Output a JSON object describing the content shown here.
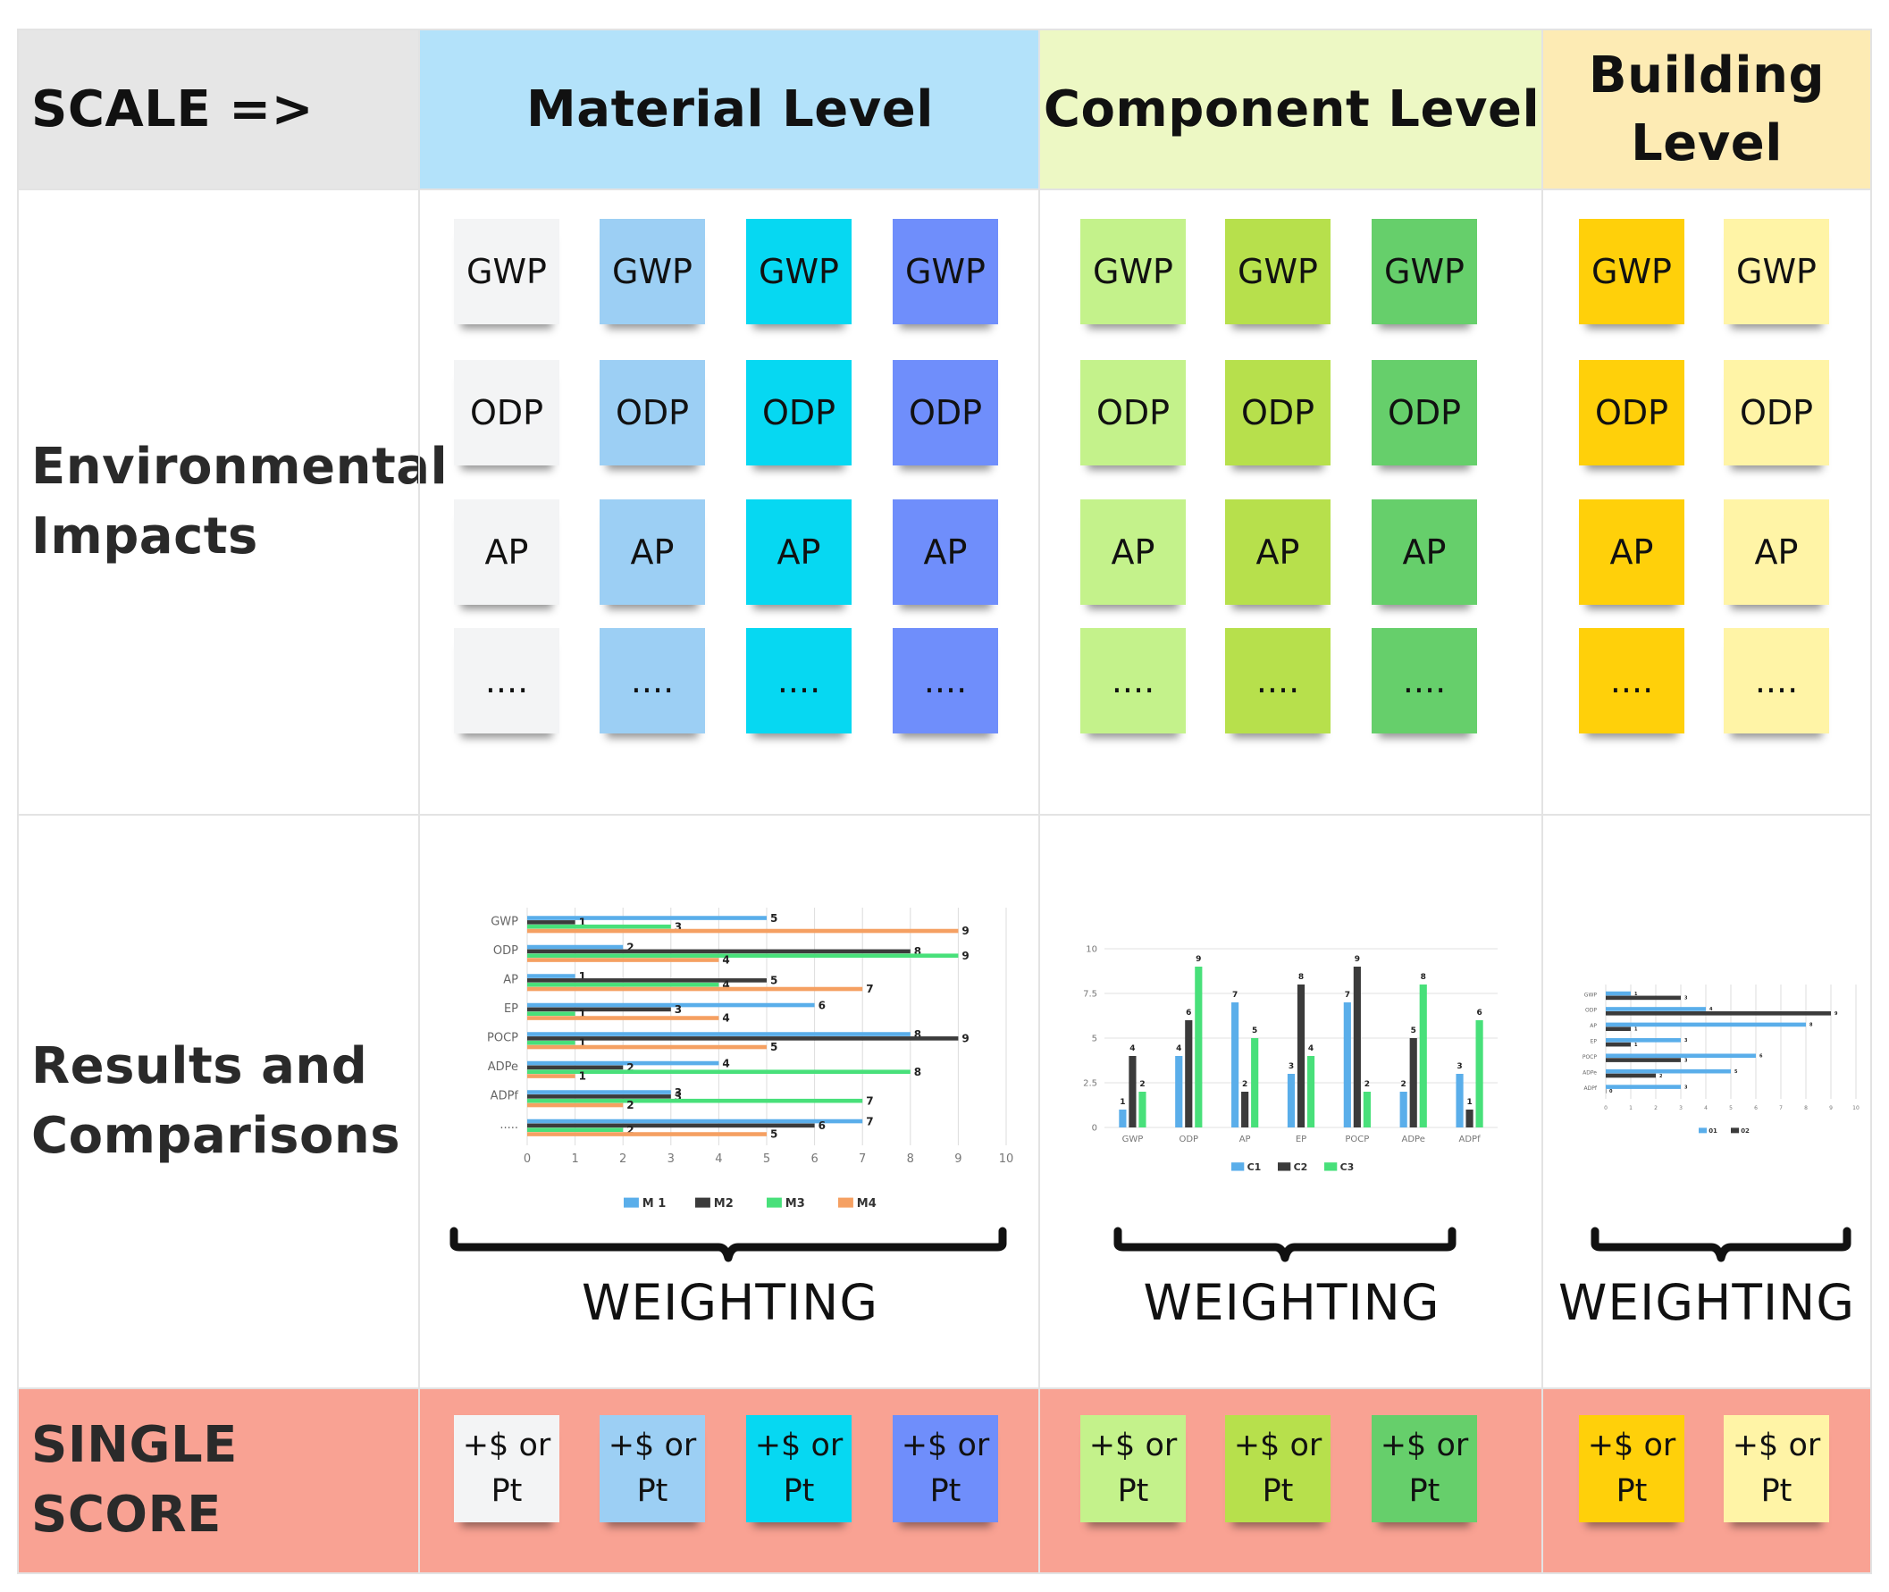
{
  "header": {
    "scale_label": "SCALE =>",
    "material": "Material Level",
    "component": "Component Level",
    "building": "Building Level"
  },
  "rows": {
    "impacts": "Environmental Impacts",
    "results": "Results and Comparisons",
    "score": "SINGLE SCORE"
  },
  "impact_labels": [
    "GWP",
    "ODP",
    "AP",
    "...."
  ],
  "score_label": "+$ or\nPt",
  "weighting_label": "WEIGHTING",
  "colors": {
    "material": [
      "#f3f4f5",
      "#9ccff4",
      "#06d8f2",
      "#6f8efb"
    ],
    "component": [
      "#c4f28b",
      "#b7e04c",
      "#66cf6b"
    ],
    "building": [
      "#ffd00a",
      "#fff4a6"
    ],
    "header_scale": "#e6e6e6",
    "header_material": "#b3e2fa",
    "header_component": "#edf8c4",
    "header_building": "#fdebb4",
    "score_row": "#f9a293"
  },
  "chart_data": [
    {
      "type": "bar",
      "orientation": "horizontal",
      "categories": [
        "GWP",
        "ODP",
        "AP",
        "EP",
        "POCP",
        "ADPe",
        "ADPf",
        "....."
      ],
      "series": [
        {
          "name": "M 1",
          "color": "#5aaeea",
          "values": [
            5,
            2,
            1,
            6,
            8,
            4,
            3,
            7
          ]
        },
        {
          "name": "M2",
          "color": "#3b3b3b",
          "values": [
            1,
            8,
            5,
            3,
            9,
            2,
            3,
            6
          ]
        },
        {
          "name": "M3",
          "color": "#48e07a",
          "values": [
            3,
            9,
            4,
            1,
            1,
            8,
            7,
            2
          ]
        },
        {
          "name": "M4",
          "color": "#f5a062",
          "values": [
            9,
            4,
            7,
            4,
            5,
            1,
            2,
            5
          ]
        }
      ],
      "xlim": [
        0,
        10
      ],
      "xticks": [
        "0",
        "1",
        "2",
        "3",
        "4",
        "5",
        "6",
        "7",
        "8",
        "9",
        "10"
      ],
      "legend": "bottom"
    },
    {
      "type": "bar",
      "orientation": "vertical",
      "categories": [
        "GWP",
        "ODP",
        "AP",
        "EP",
        "POCP",
        "ADPe",
        "ADPf"
      ],
      "series": [
        {
          "name": "C1",
          "color": "#5aaeea",
          "values": [
            1,
            4,
            7,
            3,
            7,
            2,
            3
          ]
        },
        {
          "name": "C2",
          "color": "#3b3b3b",
          "values": [
            4,
            6,
            2,
            8,
            9,
            5,
            1
          ]
        },
        {
          "name": "C3",
          "color": "#48e07a",
          "values": [
            2,
            9,
            5,
            4,
            2,
            8,
            6
          ]
        }
      ],
      "ylim": [
        0,
        10
      ],
      "yticks": [
        "0",
        "2.5",
        "5",
        "7.5",
        "10"
      ],
      "legend": "bottom"
    },
    {
      "type": "bar",
      "orientation": "horizontal",
      "categories": [
        "GWP",
        "ODP",
        "AP",
        "EP",
        "POCP",
        "ADPe",
        "ADPf"
      ],
      "series": [
        {
          "name": "01",
          "color": "#5aaeea",
          "values": [
            1,
            4,
            8,
            3,
            6,
            5,
            3
          ]
        },
        {
          "name": "02",
          "color": "#3b3b3b",
          "values": [
            3,
            9,
            1,
            1,
            3,
            2,
            0
          ]
        }
      ],
      "xlim": [
        0,
        10
      ],
      "xticks": [
        "0",
        "1",
        "2",
        "3",
        "4",
        "5",
        "6",
        "7",
        "8",
        "9",
        "10"
      ],
      "legend": "bottom"
    }
  ]
}
